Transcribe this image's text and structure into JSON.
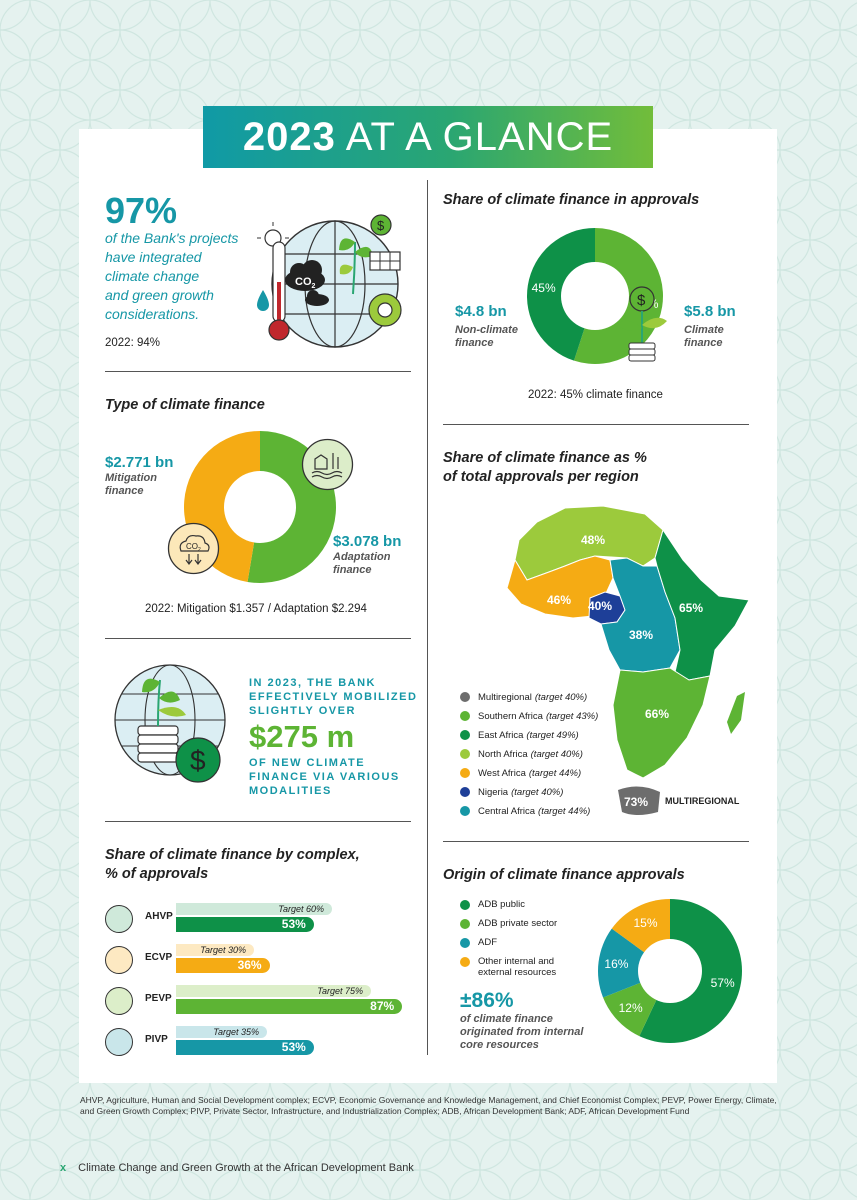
{
  "banner": {
    "year": "2023",
    "rest": "AT A GLANCE"
  },
  "projects": {
    "stat": "97%",
    "line1": "of the Bank's projects",
    "line2": "have integrated",
    "line3": "climate change",
    "line4": "and green growth",
    "line5": "considerations.",
    "prev": "2022: 94%",
    "co2_label": "CO",
    "co2_sub": "2",
    "dollar": "$"
  },
  "type_finance": {
    "title": "Type of climate finance",
    "mitigation_value": "$2.771 bn",
    "mitigation_label1": "Mitigation",
    "mitigation_label2": "finance",
    "adaptation_value": "$3.078 bn",
    "adaptation_label1": "Adaptation",
    "adaptation_label2": "finance",
    "prev": "2022: Mitigation $1.357 / Adaptation $2.294",
    "co2_label": "CO",
    "co2_sub": "2"
  },
  "mobilized": {
    "line1": "IN 2023, THE BANK",
    "line2": "EFFECTIVELY MOBILIZED",
    "line3": "SLIGHTLY OVER",
    "amount": "$275 m",
    "line4": "OF NEW CLIMATE",
    "line5": "FINANCE VIA VARIOUS",
    "line6": "MODALITIES",
    "dollar": "$"
  },
  "complex": {
    "title1": "Share of climate finance by complex,",
    "title2": "% of approvals"
  },
  "approvals": {
    "title": "Share of climate finance in approvals",
    "non_value": "$4.8 bn",
    "non_label1": "Non-climate",
    "non_label2": "finance",
    "climate_value": "$5.8 bn",
    "climate_label1": "Climate",
    "climate_label2": "finance",
    "prev": "2022: 45% climate finance",
    "dollar": "$"
  },
  "region": {
    "title1": "Share of climate finance as %",
    "title2": "of total approvals per region",
    "multiregional_label": "MULTIREGIONAL"
  },
  "origin": {
    "title": "Origin of climate finance approvals",
    "stat": "±86%",
    "line1": "of climate finance",
    "line2": "originated from internal",
    "line3": "core resources"
  },
  "footnote": "AHVP, Agriculture, Human and Social Development complex; ECVP, Economic Governance and Knowledge Management, and Chief Economist Complex; PEVP, Power Energy, Climate, and Green Growth Complex; PIVP, Private Sector, Infrastructure, and Industrialization Complex; ADB, African Development Bank; ADF, African Development Fund",
  "page": {
    "num": "x",
    "title": "Climate Change and Green Growth at the African Development Bank"
  },
  "colors": {
    "dark_green": "#0e9148",
    "green": "#5db434",
    "light_green": "#9cca3c",
    "orange": "#f5ab14",
    "navy": "#1e3f98",
    "teal": "#1697a6",
    "grey": "#6d6d6d"
  },
  "chart_data": [
    {
      "type": "pie",
      "name": "Share of climate finance in approvals",
      "slices": [
        {
          "label": "Climate finance",
          "value": 55,
          "display": "55%",
          "color": "#5db434"
        },
        {
          "label": "Non-climate finance",
          "value": 45,
          "display": "45%",
          "color": "#0e9148"
        }
      ]
    },
    {
      "type": "pie",
      "name": "Type of climate finance",
      "slices": [
        {
          "label": "Adaptation finance",
          "value": 3.078,
          "color": "#5db434"
        },
        {
          "label": "Mitigation finance",
          "value": 2.771,
          "color": "#f5ab14"
        }
      ]
    },
    {
      "type": "bar",
      "name": "Share of climate finance by complex",
      "categories": [
        "AHVP",
        "ECVP",
        "PEVP",
        "PIVP"
      ],
      "series": [
        {
          "name": "Target",
          "values": [
            60,
            30,
            75,
            35
          ],
          "labels": [
            "Target 60%",
            "Target 30%",
            "Target 75%",
            "Target 35%"
          ]
        },
        {
          "name": "Actual",
          "values": [
            53,
            36,
            87,
            53
          ],
          "labels": [
            "53%",
            "36%",
            "87%",
            "53%"
          ]
        }
      ],
      "colors": [
        "#0e9148",
        "#f5ab14",
        "#5db434",
        "#1697a6"
      ],
      "light_colors": [
        "#cfe9da",
        "#fde9c2",
        "#dceec9",
        "#c9e6ea"
      ]
    },
    {
      "type": "table",
      "name": "Regions",
      "rows": [
        {
          "label": "Multiregional",
          "target": "(target 40%)",
          "value": "73%",
          "color": "#6d6d6d"
        },
        {
          "label": "Southern Africa",
          "target": "(target 43%)",
          "value": "66%",
          "color": "#5db434"
        },
        {
          "label": "East Africa",
          "target": "(target 49%)",
          "value": "65%",
          "color": "#0e9148"
        },
        {
          "label": "North Africa",
          "target": "(target 40%)",
          "value": "48%",
          "color": "#9cca3c"
        },
        {
          "label": "West Africa",
          "target": "(target 44%)",
          "value": "46%",
          "color": "#f5ab14"
        },
        {
          "label": "Nigeria",
          "target": "(target 40%)",
          "value": "40%",
          "color": "#1e3f98"
        },
        {
          "label": "Central Africa",
          "target": "(target 44%)",
          "value": "38%",
          "color": "#1697a6"
        }
      ]
    },
    {
      "type": "pie",
      "name": "Origin of climate finance approvals",
      "slices": [
        {
          "label": "ADB public",
          "value": 57,
          "display": "57%",
          "color": "#0e9148"
        },
        {
          "label": "ADB private sector",
          "value": 12,
          "display": "12%",
          "color": "#5db434"
        },
        {
          "label": "ADF",
          "value": 16,
          "display": "16%",
          "color": "#1697a6"
        },
        {
          "label": "Other internal and external resources",
          "value": 15,
          "display": "15%",
          "color": "#f5ab14"
        }
      ]
    }
  ]
}
